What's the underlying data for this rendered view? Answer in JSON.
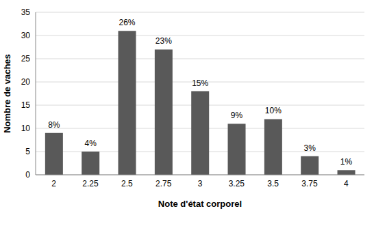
{
  "chart_data": {
    "type": "bar",
    "x_label": "Note d'état corporel",
    "y_label": "Nombre de vaches",
    "categories": [
      "2",
      "2.25",
      "2.5",
      "2.75",
      "3",
      "3.25",
      "3.5",
      "3.75",
      "4"
    ],
    "values": [
      9,
      5,
      31,
      27,
      18,
      11,
      12,
      4,
      1
    ],
    "percent_labels": [
      "8%",
      "4%",
      "26%",
      "23%",
      "15%",
      "9%",
      "10%",
      "3%",
      "1%"
    ],
    "color": "#595959",
    "ylim": [
      0,
      35
    ],
    "yticks": [
      0,
      5,
      10,
      15,
      20,
      25,
      30,
      35
    ],
    "grid": true
  }
}
